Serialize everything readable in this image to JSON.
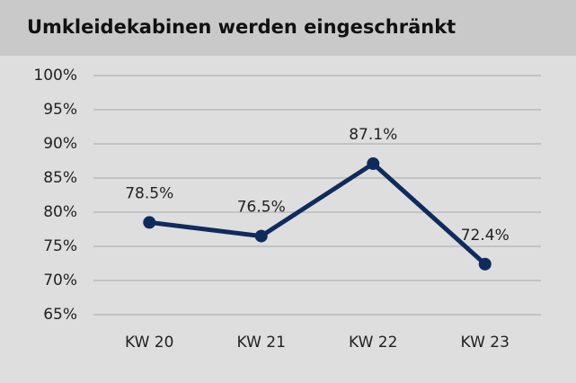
{
  "chart_data": {
    "type": "line",
    "title": "Umkleidekabinen werden eingeschränkt",
    "categories": [
      "KW 20",
      "KW 21",
      "KW 22",
      "KW 23"
    ],
    "series": [
      {
        "name": null,
        "color": "#0f2b5e",
        "values": [
          78.5,
          76.5,
          87.1,
          72.4
        ],
        "value_labels": [
          "78.5%",
          "76.5%",
          "87.1%",
          "72.4%"
        ]
      }
    ],
    "ylim": [
      65,
      100
    ],
    "yticks": [
      {
        "value": 65,
        "label": "65%"
      },
      {
        "value": 70,
        "label": "70%"
      },
      {
        "value": 75,
        "label": "75%"
      },
      {
        "value": 80,
        "label": "80%"
      },
      {
        "value": 85,
        "label": "85%"
      },
      {
        "value": 90,
        "label": "90%"
      },
      {
        "value": 95,
        "label": "95%"
      },
      {
        "value": 100,
        "label": "100%"
      }
    ],
    "grid": true
  }
}
